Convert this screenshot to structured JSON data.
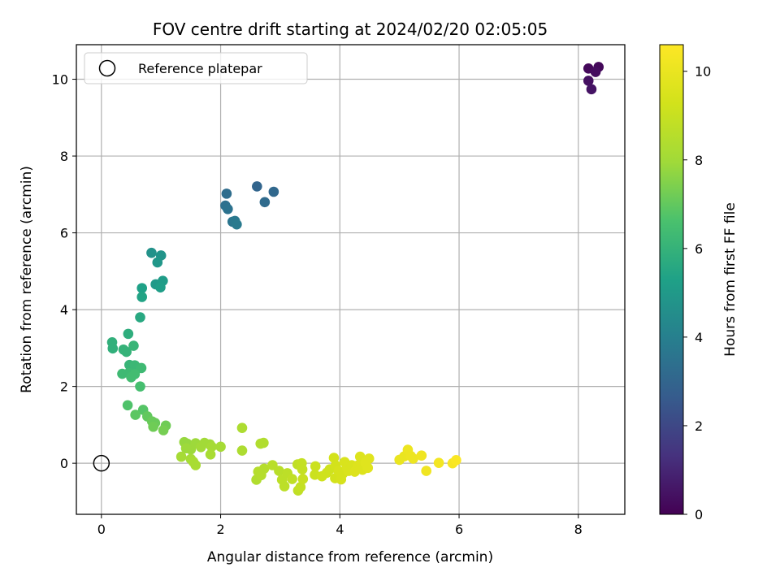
{
  "chart_data": {
    "type": "scatter",
    "title": "FOV centre drift starting at 2024/02/20 02:05:05",
    "xlabel": "Angular distance from reference (arcmin)",
    "ylabel": "Rotation from reference (arcmin)",
    "xlim": [
      -0.42,
      8.78
    ],
    "ylim": [
      -1.33,
      10.9
    ],
    "xticks": [
      0,
      2,
      4,
      6,
      8
    ],
    "yticks": [
      0,
      2,
      4,
      6,
      8,
      10
    ],
    "grid": true,
    "legend": {
      "placement": "upper-left",
      "entries": [
        "Reference platepar"
      ]
    },
    "reference_point": {
      "x": 0,
      "y": 0
    },
    "colorbar": {
      "label": "Hours from first FF file",
      "range": [
        0,
        10.6
      ],
      "ticks": [
        0,
        2,
        4,
        6,
        8,
        10
      ],
      "colormap": "viridis"
    },
    "points": [
      {
        "x": 8.17,
        "y": 10.28,
        "hours": 0.2
      },
      {
        "x": 8.34,
        "y": 10.32,
        "hours": 0.2
      },
      {
        "x": 8.29,
        "y": 10.19,
        "hours": 0.3
      },
      {
        "x": 8.17,
        "y": 9.96,
        "hours": 0.4
      },
      {
        "x": 8.22,
        "y": 9.74,
        "hours": 0.5
      },
      {
        "x": 2.61,
        "y": 7.21,
        "hours": 3.0
      },
      {
        "x": 2.89,
        "y": 7.07,
        "hours": 3.1
      },
      {
        "x": 2.74,
        "y": 6.8,
        "hours": 3.2
      },
      {
        "x": 2.1,
        "y": 7.02,
        "hours": 3.3
      },
      {
        "x": 2.08,
        "y": 6.71,
        "hours": 3.4
      },
      {
        "x": 2.12,
        "y": 6.62,
        "hours": 3.5
      },
      {
        "x": 2.2,
        "y": 6.29,
        "hours": 3.6
      },
      {
        "x": 2.24,
        "y": 6.31,
        "hours": 3.7
      },
      {
        "x": 2.27,
        "y": 6.22,
        "hours": 3.8
      },
      {
        "x": 0.84,
        "y": 5.48,
        "hours": 4.7
      },
      {
        "x": 1.0,
        "y": 5.41,
        "hours": 4.8
      },
      {
        "x": 0.94,
        "y": 5.23,
        "hours": 4.9
      },
      {
        "x": 0.91,
        "y": 4.66,
        "hours": 5.0
      },
      {
        "x": 1.03,
        "y": 4.75,
        "hours": 5.1
      },
      {
        "x": 0.99,
        "y": 4.58,
        "hours": 5.2
      },
      {
        "x": 0.68,
        "y": 4.56,
        "hours": 5.3
      },
      {
        "x": 0.68,
        "y": 4.33,
        "hours": 5.4
      },
      {
        "x": 0.65,
        "y": 3.8,
        "hours": 5.6
      },
      {
        "x": 0.45,
        "y": 3.37,
        "hours": 5.8
      },
      {
        "x": 0.18,
        "y": 3.15,
        "hours": 5.9
      },
      {
        "x": 0.19,
        "y": 2.99,
        "hours": 5.9
      },
      {
        "x": 0.37,
        "y": 2.96,
        "hours": 6.0
      },
      {
        "x": 0.42,
        "y": 2.9,
        "hours": 6.0
      },
      {
        "x": 0.54,
        "y": 3.06,
        "hours": 6.1
      },
      {
        "x": 0.47,
        "y": 2.56,
        "hours": 6.1
      },
      {
        "x": 0.56,
        "y": 2.55,
        "hours": 6.2
      },
      {
        "x": 0.61,
        "y": 2.48,
        "hours": 6.2
      },
      {
        "x": 0.67,
        "y": 2.48,
        "hours": 6.3
      },
      {
        "x": 0.35,
        "y": 2.33,
        "hours": 6.3
      },
      {
        "x": 0.46,
        "y": 2.35,
        "hours": 6.3
      },
      {
        "x": 0.5,
        "y": 2.24,
        "hours": 6.4
      },
      {
        "x": 0.56,
        "y": 2.32,
        "hours": 6.4
      },
      {
        "x": 0.65,
        "y": 2.0,
        "hours": 6.5
      },
      {
        "x": 0.44,
        "y": 1.51,
        "hours": 6.7
      },
      {
        "x": 0.7,
        "y": 1.39,
        "hours": 6.8
      },
      {
        "x": 0.57,
        "y": 1.26,
        "hours": 6.9
      },
      {
        "x": 0.77,
        "y": 1.22,
        "hours": 7.0
      },
      {
        "x": 0.85,
        "y": 1.09,
        "hours": 7.1
      },
      {
        "x": 0.9,
        "y": 1.05,
        "hours": 7.1
      },
      {
        "x": 0.87,
        "y": 0.95,
        "hours": 7.2
      },
      {
        "x": 1.08,
        "y": 0.98,
        "hours": 7.2
      },
      {
        "x": 1.04,
        "y": 0.86,
        "hours": 7.3
      },
      {
        "x": 1.39,
        "y": 0.55,
        "hours": 7.8
      },
      {
        "x": 1.44,
        "y": 0.51,
        "hours": 7.8
      },
      {
        "x": 1.42,
        "y": 0.39,
        "hours": 7.9
      },
      {
        "x": 1.5,
        "y": 0.36,
        "hours": 7.9
      },
      {
        "x": 1.58,
        "y": 0.52,
        "hours": 7.9
      },
      {
        "x": 1.67,
        "y": 0.42,
        "hours": 8.0
      },
      {
        "x": 1.73,
        "y": 0.53,
        "hours": 8.0
      },
      {
        "x": 1.82,
        "y": 0.49,
        "hours": 8.0
      },
      {
        "x": 1.85,
        "y": 0.43,
        "hours": 8.1
      },
      {
        "x": 2.0,
        "y": 0.43,
        "hours": 8.1
      },
      {
        "x": 1.34,
        "y": 0.17,
        "hours": 8.1
      },
      {
        "x": 1.5,
        "y": 0.11,
        "hours": 8.1
      },
      {
        "x": 1.54,
        "y": 0.04,
        "hours": 8.2
      },
      {
        "x": 1.58,
        "y": -0.05,
        "hours": 8.2
      },
      {
        "x": 1.83,
        "y": 0.23,
        "hours": 8.2
      },
      {
        "x": 2.36,
        "y": 0.92,
        "hours": 8.3
      },
      {
        "x": 2.36,
        "y": 0.33,
        "hours": 8.3
      },
      {
        "x": 2.67,
        "y": 0.51,
        "hours": 8.4
      },
      {
        "x": 2.72,
        "y": 0.53,
        "hours": 8.4
      },
      {
        "x": 2.6,
        "y": -0.43,
        "hours": 8.4
      },
      {
        "x": 2.63,
        "y": -0.22,
        "hours": 8.5
      },
      {
        "x": 2.68,
        "y": -0.31,
        "hours": 8.5
      },
      {
        "x": 2.73,
        "y": -0.14,
        "hours": 8.5
      },
      {
        "x": 2.87,
        "y": -0.05,
        "hours": 8.6
      },
      {
        "x": 2.98,
        "y": -0.2,
        "hours": 8.6
      },
      {
        "x": 3.03,
        "y": -0.43,
        "hours": 8.7
      },
      {
        "x": 3.07,
        "y": -0.6,
        "hours": 8.7
      },
      {
        "x": 3.12,
        "y": -0.26,
        "hours": 8.7
      },
      {
        "x": 3.2,
        "y": -0.41,
        "hours": 8.8
      },
      {
        "x": 3.29,
        "y": -0.03,
        "hours": 8.8
      },
      {
        "x": 3.3,
        "y": -0.71,
        "hours": 8.8
      },
      {
        "x": 3.34,
        "y": -0.62,
        "hours": 8.9
      },
      {
        "x": 3.36,
        "y": 0.0,
        "hours": 8.9
      },
      {
        "x": 3.37,
        "y": -0.16,
        "hours": 8.9
      },
      {
        "x": 3.38,
        "y": -0.41,
        "hours": 9.0
      },
      {
        "x": 3.59,
        "y": -0.08,
        "hours": 9.1
      },
      {
        "x": 3.58,
        "y": -0.3,
        "hours": 9.1
      },
      {
        "x": 3.7,
        "y": -0.34,
        "hours": 9.2
      },
      {
        "x": 3.78,
        "y": -0.25,
        "hours": 9.2
      },
      {
        "x": 3.83,
        "y": -0.16,
        "hours": 9.2
      },
      {
        "x": 3.9,
        "y": 0.14,
        "hours": 9.3
      },
      {
        "x": 3.93,
        "y": -0.06,
        "hours": 9.3
      },
      {
        "x": 3.92,
        "y": -0.39,
        "hours": 9.3
      },
      {
        "x": 3.98,
        "y": -0.2,
        "hours": 9.4
      },
      {
        "x": 4.02,
        "y": -0.42,
        "hours": 9.4
      },
      {
        "x": 4.05,
        "y": -0.27,
        "hours": 9.4
      },
      {
        "x": 4.08,
        "y": 0.03,
        "hours": 9.5
      },
      {
        "x": 4.12,
        "y": -0.12,
        "hours": 9.5
      },
      {
        "x": 4.15,
        "y": -0.2,
        "hours": 9.5
      },
      {
        "x": 4.2,
        "y": -0.05,
        "hours": 9.5
      },
      {
        "x": 4.25,
        "y": -0.22,
        "hours": 9.6
      },
      {
        "x": 4.3,
        "y": -0.06,
        "hours": 9.6
      },
      {
        "x": 4.34,
        "y": 0.17,
        "hours": 9.6
      },
      {
        "x": 4.38,
        "y": -0.17,
        "hours": 9.6
      },
      {
        "x": 4.43,
        "y": 0.02,
        "hours": 9.7
      },
      {
        "x": 4.47,
        "y": -0.12,
        "hours": 9.7
      },
      {
        "x": 4.49,
        "y": 0.12,
        "hours": 9.7
      },
      {
        "x": 5.0,
        "y": 0.09,
        "hours": 10.0
      },
      {
        "x": 5.08,
        "y": 0.18,
        "hours": 10.0
      },
      {
        "x": 5.14,
        "y": 0.35,
        "hours": 10.1
      },
      {
        "x": 5.19,
        "y": 0.19,
        "hours": 10.1
      },
      {
        "x": 5.23,
        "y": 0.12,
        "hours": 10.1
      },
      {
        "x": 5.37,
        "y": 0.2,
        "hours": 10.2
      },
      {
        "x": 5.45,
        "y": -0.2,
        "hours": 10.2
      },
      {
        "x": 5.66,
        "y": 0.01,
        "hours": 10.3
      },
      {
        "x": 5.89,
        "y": 0.0,
        "hours": 10.4
      },
      {
        "x": 5.95,
        "y": 0.08,
        "hours": 10.5
      }
    ]
  }
}
